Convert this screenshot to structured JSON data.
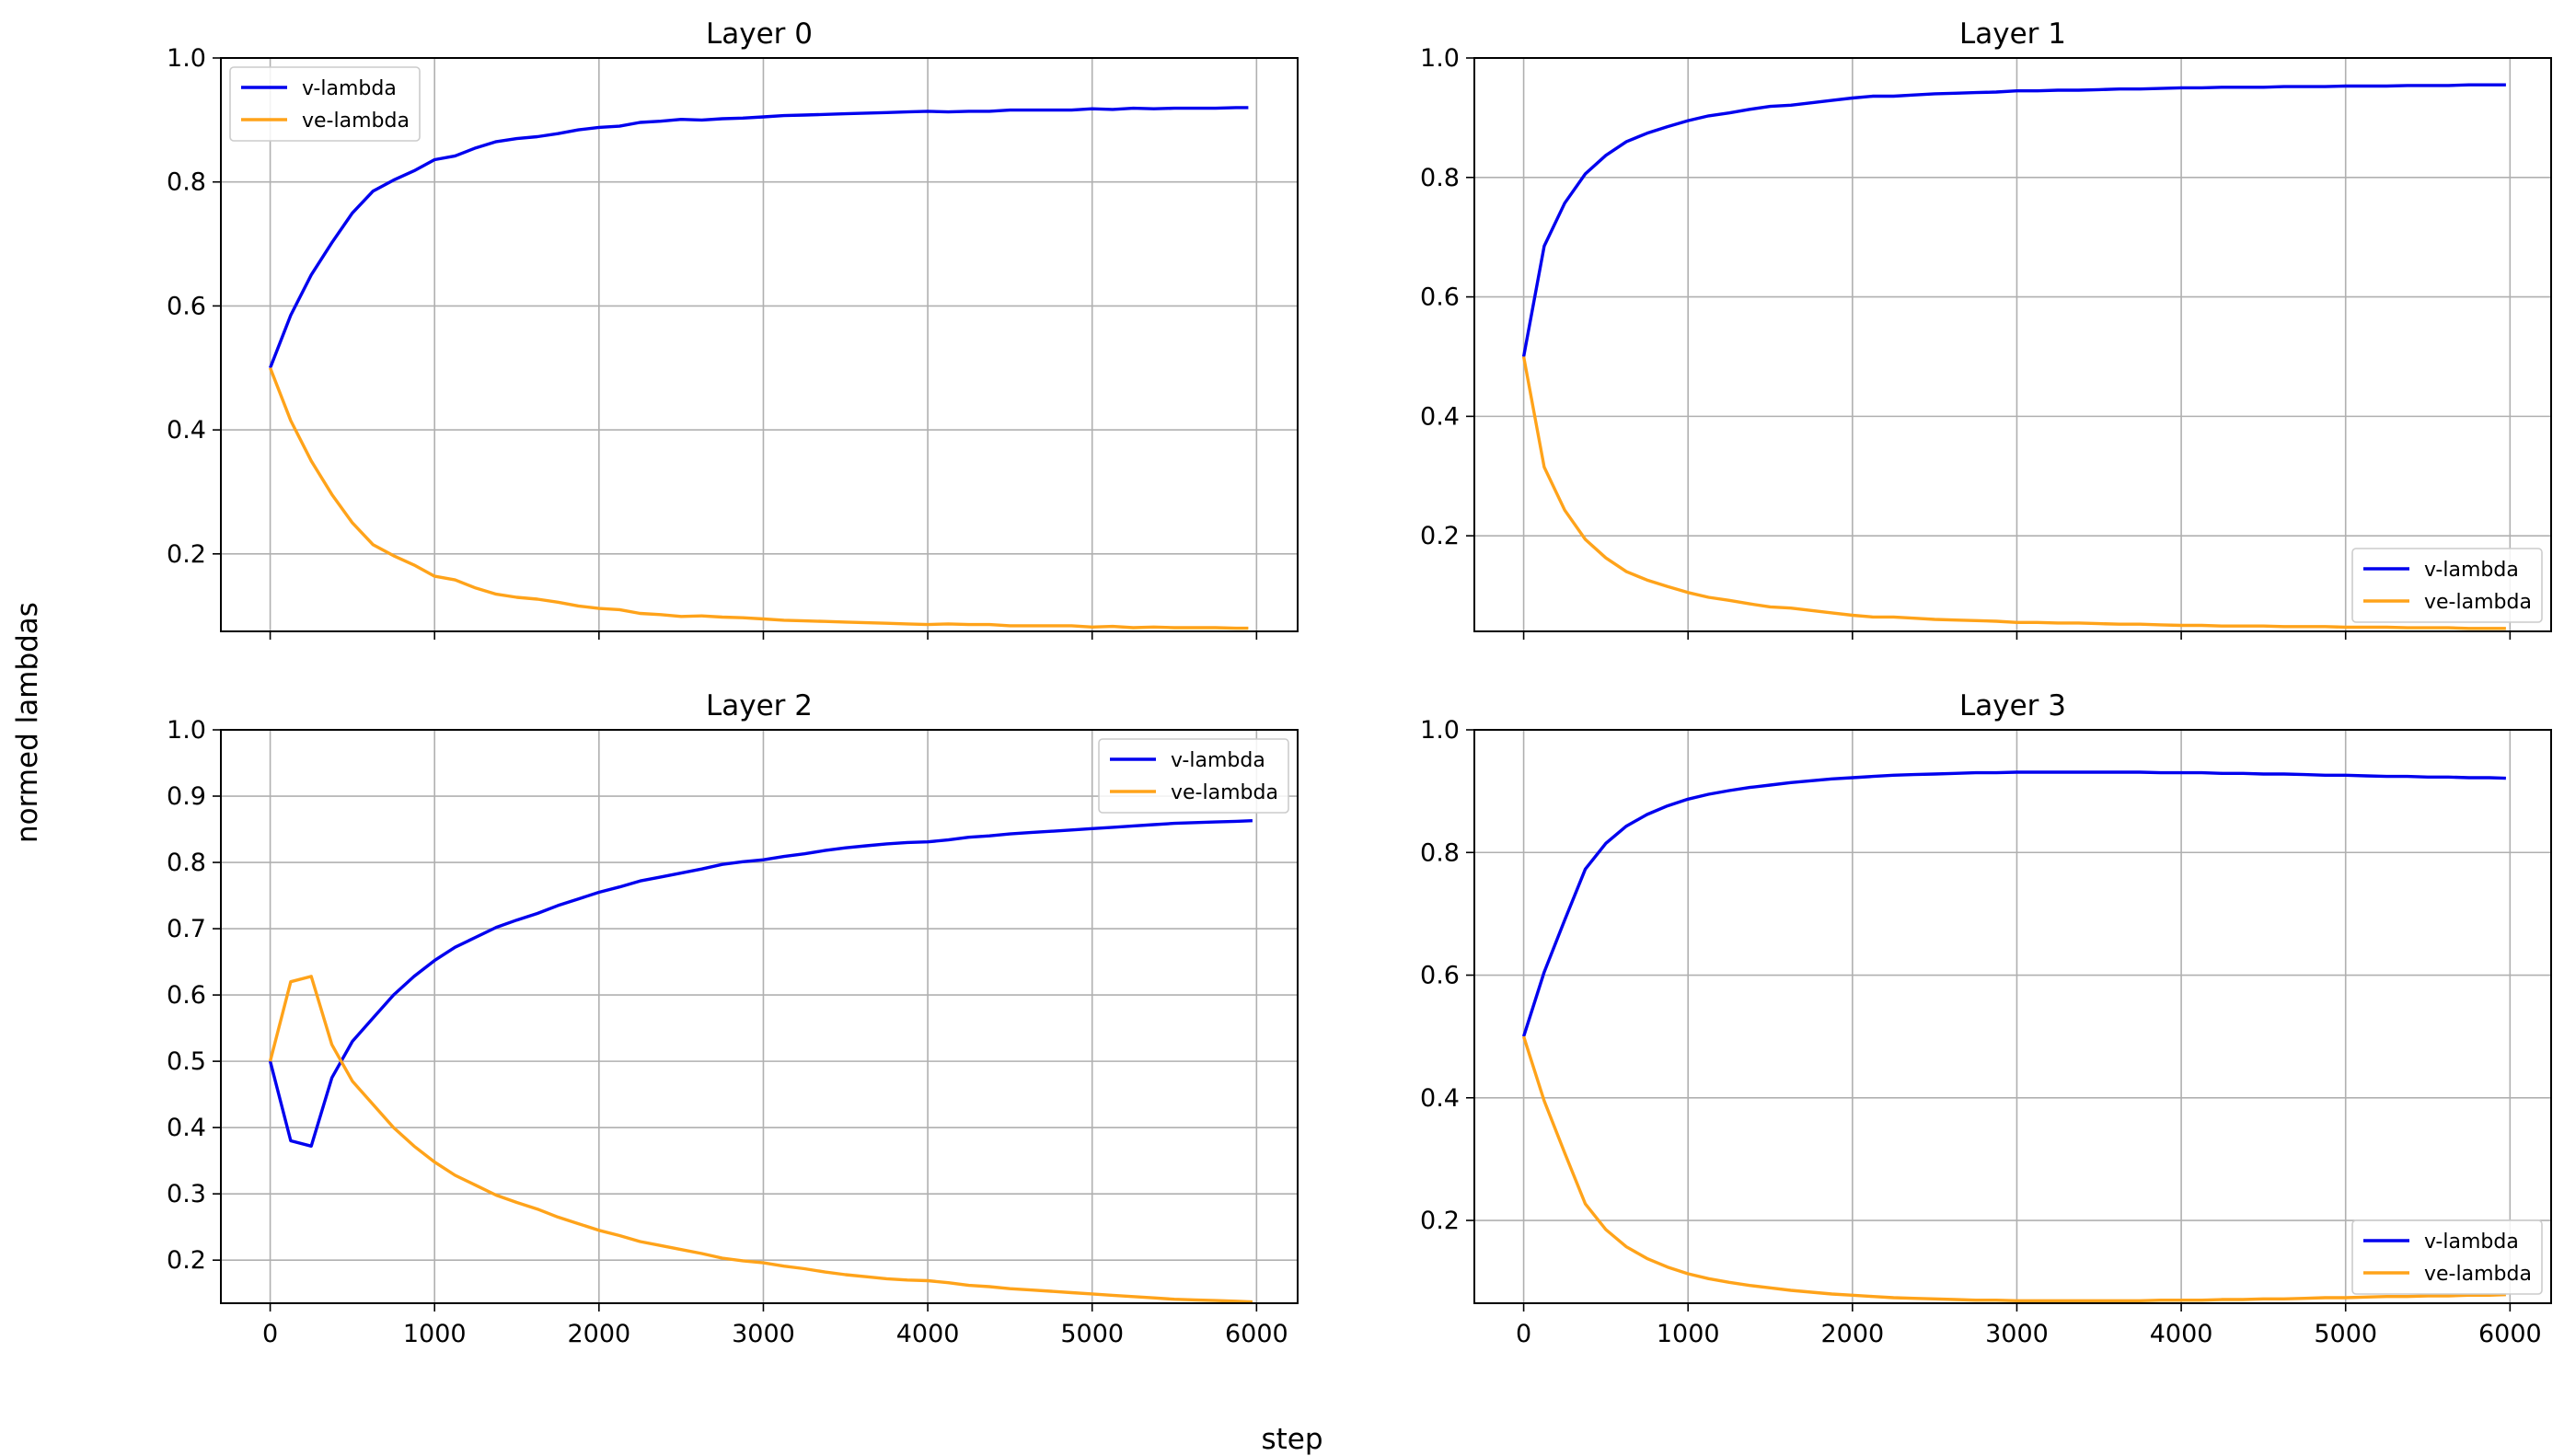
{
  "figure": {
    "xlabel": "step",
    "ylabel": "normed lambdas",
    "colors": {
      "v": "#0000ee",
      "ve": "#ffa31a",
      "grid": "#b0b0b0",
      "axis": "#000000"
    }
  },
  "chart_data": [
    {
      "type": "line",
      "title": "Layer 0",
      "xlim": [
        -300,
        6250
      ],
      "ylim": [
        0.075,
        1.0
      ],
      "xticks": [
        0,
        1000,
        2000,
        3000,
        4000,
        5000,
        6000
      ],
      "yticks": [
        0.2,
        0.4,
        0.6,
        0.8,
        1.0
      ],
      "show_xticklabels": false,
      "grid": true,
      "legend": "upper left",
      "x": [
        0,
        125,
        250,
        375,
        500,
        625,
        750,
        875,
        1000,
        1125,
        1250,
        1375,
        1500,
        1625,
        1750,
        1875,
        2000,
        2125,
        2250,
        2375,
        2500,
        2625,
        2750,
        2875,
        3000,
        3125,
        3250,
        3375,
        3500,
        3625,
        3750,
        3875,
        4000,
        4125,
        4250,
        4375,
        4500,
        4625,
        4750,
        4875,
        5000,
        5125,
        5250,
        5375,
        5500,
        5625,
        5750,
        5875,
        5950
      ],
      "series": [
        {
          "name": "v-lambda",
          "color": "#0000ee",
          "values": [
            0.5,
            0.585,
            0.65,
            0.702,
            0.75,
            0.785,
            0.803,
            0.818,
            0.836,
            0.842,
            0.855,
            0.865,
            0.87,
            0.873,
            0.878,
            0.884,
            0.888,
            0.89,
            0.896,
            0.898,
            0.901,
            0.9,
            0.902,
            0.903,
            0.905,
            0.907,
            0.908,
            0.909,
            0.91,
            0.911,
            0.912,
            0.913,
            0.914,
            0.913,
            0.914,
            0.914,
            0.916,
            0.916,
            0.916,
            0.916,
            0.918,
            0.917,
            0.919,
            0.918,
            0.919,
            0.919,
            0.919,
            0.92,
            0.92
          ]
        },
        {
          "name": "ve-lambda",
          "color": "#ffa31a",
          "values": [
            0.5,
            0.415,
            0.35,
            0.296,
            0.25,
            0.215,
            0.197,
            0.182,
            0.164,
            0.158,
            0.145,
            0.135,
            0.13,
            0.127,
            0.122,
            0.116,
            0.112,
            0.11,
            0.104,
            0.102,
            0.099,
            0.1,
            0.098,
            0.097,
            0.095,
            0.093,
            0.092,
            0.091,
            0.09,
            0.089,
            0.088,
            0.087,
            0.086,
            0.087,
            0.086,
            0.086,
            0.084,
            0.084,
            0.084,
            0.084,
            0.082,
            0.083,
            0.081,
            0.082,
            0.081,
            0.081,
            0.081,
            0.08,
            0.08
          ]
        }
      ]
    },
    {
      "type": "line",
      "title": "Layer 1",
      "xlim": [
        -300,
        6250
      ],
      "ylim": [
        0.04,
        1.0
      ],
      "xticks": [
        0,
        1000,
        2000,
        3000,
        4000,
        5000,
        6000
      ],
      "yticks": [
        0.2,
        0.4,
        0.6,
        0.8,
        1.0
      ],
      "show_xticklabels": false,
      "grid": true,
      "legend": "lower right",
      "x": [
        0,
        125,
        250,
        375,
        500,
        625,
        750,
        875,
        1000,
        1125,
        1250,
        1375,
        1500,
        1625,
        1750,
        1875,
        2000,
        2125,
        2250,
        2375,
        2500,
        2625,
        2750,
        2875,
        3000,
        3125,
        3250,
        3375,
        3500,
        3625,
        3750,
        3875,
        4000,
        4125,
        4250,
        4375,
        4500,
        4625,
        4750,
        4875,
        5000,
        5125,
        5250,
        5375,
        5500,
        5625,
        5750,
        5875,
        5975
      ],
      "series": [
        {
          "name": "v-lambda",
          "color": "#0000ee",
          "values": [
            0.5,
            0.685,
            0.757,
            0.806,
            0.837,
            0.86,
            0.874,
            0.885,
            0.895,
            0.903,
            0.908,
            0.914,
            0.919,
            0.921,
            0.925,
            0.929,
            0.933,
            0.936,
            0.936,
            0.938,
            0.94,
            0.941,
            0.942,
            0.943,
            0.945,
            0.945,
            0.946,
            0.946,
            0.947,
            0.948,
            0.948,
            0.949,
            0.95,
            0.95,
            0.951,
            0.951,
            0.951,
            0.952,
            0.952,
            0.952,
            0.953,
            0.953,
            0.953,
            0.954,
            0.954,
            0.954,
            0.955,
            0.955,
            0.955
          ]
        },
        {
          "name": "ve-lambda",
          "color": "#ffa31a",
          "values": [
            0.5,
            0.315,
            0.243,
            0.194,
            0.163,
            0.14,
            0.126,
            0.115,
            0.105,
            0.097,
            0.092,
            0.086,
            0.081,
            0.079,
            0.075,
            0.071,
            0.067,
            0.064,
            0.064,
            0.062,
            0.06,
            0.059,
            0.058,
            0.057,
            0.055,
            0.055,
            0.054,
            0.054,
            0.053,
            0.052,
            0.052,
            0.051,
            0.05,
            0.05,
            0.049,
            0.049,
            0.049,
            0.048,
            0.048,
            0.048,
            0.047,
            0.047,
            0.047,
            0.046,
            0.046,
            0.046,
            0.045,
            0.045,
            0.045
          ]
        }
      ]
    },
    {
      "type": "line",
      "title": "Layer 2",
      "xlim": [
        -300,
        6250
      ],
      "ylim": [
        0.135,
        1.0
      ],
      "xticks": [
        0,
        1000,
        2000,
        3000,
        4000,
        5000,
        6000
      ],
      "yticks": [
        0.2,
        0.3,
        0.4,
        0.5,
        0.6,
        0.7,
        0.8,
        0.9,
        1.0
      ],
      "show_xticklabels": true,
      "grid": true,
      "legend": "upper right",
      "x": [
        0,
        125,
        250,
        375,
        500,
        625,
        750,
        875,
        1000,
        1125,
        1250,
        1375,
        1500,
        1625,
        1750,
        1875,
        2000,
        2125,
        2250,
        2375,
        2500,
        2625,
        2750,
        2875,
        3000,
        3125,
        3250,
        3375,
        3500,
        3625,
        3750,
        3875,
        4000,
        4125,
        4250,
        4375,
        4500,
        4625,
        4750,
        4875,
        5000,
        5125,
        5250,
        5375,
        5500,
        5625,
        5750,
        5875,
        5975
      ],
      "series": [
        {
          "name": "v-lambda",
          "color": "#0000ee",
          "values": [
            0.5,
            0.38,
            0.372,
            0.475,
            0.53,
            0.565,
            0.6,
            0.628,
            0.652,
            0.672,
            0.687,
            0.702,
            0.713,
            0.723,
            0.735,
            0.745,
            0.755,
            0.763,
            0.772,
            0.778,
            0.784,
            0.79,
            0.797,
            0.801,
            0.804,
            0.809,
            0.813,
            0.818,
            0.822,
            0.825,
            0.828,
            0.83,
            0.831,
            0.834,
            0.838,
            0.84,
            0.843,
            0.845,
            0.847,
            0.849,
            0.851,
            0.853,
            0.855,
            0.857,
            0.859,
            0.86,
            0.861,
            0.862,
            0.863
          ]
        },
        {
          "name": "ve-lambda",
          "color": "#ffa31a",
          "values": [
            0.5,
            0.62,
            0.628,
            0.525,
            0.47,
            0.435,
            0.4,
            0.372,
            0.348,
            0.328,
            0.313,
            0.298,
            0.287,
            0.277,
            0.265,
            0.255,
            0.245,
            0.237,
            0.228,
            0.222,
            0.216,
            0.21,
            0.203,
            0.199,
            0.196,
            0.191,
            0.187,
            0.182,
            0.178,
            0.175,
            0.172,
            0.17,
            0.169,
            0.166,
            0.162,
            0.16,
            0.157,
            0.155,
            0.153,
            0.151,
            0.149,
            0.147,
            0.145,
            0.143,
            0.141,
            0.14,
            0.139,
            0.138,
            0.137
          ]
        }
      ]
    },
    {
      "type": "line",
      "title": "Layer 3",
      "xlim": [
        -300,
        6250
      ],
      "ylim": [
        0.065,
        1.0
      ],
      "xticks": [
        0,
        1000,
        2000,
        3000,
        4000,
        5000,
        6000
      ],
      "yticks": [
        0.2,
        0.4,
        0.6,
        0.8,
        1.0
      ],
      "show_xticklabels": true,
      "grid": true,
      "legend": "lower right",
      "x": [
        0,
        125,
        250,
        375,
        500,
        625,
        750,
        875,
        1000,
        1125,
        1250,
        1375,
        1500,
        1625,
        1750,
        1875,
        2000,
        2125,
        2250,
        2375,
        2500,
        2625,
        2750,
        2875,
        3000,
        3125,
        3250,
        3375,
        3500,
        3625,
        3750,
        3875,
        4000,
        4125,
        4250,
        4375,
        4500,
        4625,
        4750,
        4875,
        5000,
        5125,
        5250,
        5375,
        5500,
        5625,
        5750,
        5875,
        5975
      ],
      "series": [
        {
          "name": "v-lambda",
          "color": "#0000ee",
          "values": [
            0.5,
            0.605,
            0.69,
            0.773,
            0.815,
            0.843,
            0.862,
            0.876,
            0.887,
            0.895,
            0.901,
            0.906,
            0.91,
            0.914,
            0.917,
            0.92,
            0.922,
            0.924,
            0.926,
            0.927,
            0.928,
            0.929,
            0.93,
            0.93,
            0.931,
            0.931,
            0.931,
            0.931,
            0.931,
            0.931,
            0.931,
            0.93,
            0.93,
            0.93,
            0.929,
            0.929,
            0.928,
            0.928,
            0.927,
            0.926,
            0.926,
            0.925,
            0.924,
            0.924,
            0.923,
            0.923,
            0.922,
            0.922,
            0.921
          ]
        },
        {
          "name": "ve-lambda",
          "color": "#ffa31a",
          "values": [
            0.5,
            0.395,
            0.31,
            0.227,
            0.185,
            0.157,
            0.138,
            0.124,
            0.113,
            0.105,
            0.099,
            0.094,
            0.09,
            0.086,
            0.083,
            0.08,
            0.078,
            0.076,
            0.074,
            0.073,
            0.072,
            0.071,
            0.07,
            0.07,
            0.069,
            0.069,
            0.069,
            0.069,
            0.069,
            0.069,
            0.069,
            0.07,
            0.07,
            0.07,
            0.071,
            0.071,
            0.072,
            0.072,
            0.073,
            0.074,
            0.074,
            0.075,
            0.076,
            0.076,
            0.077,
            0.077,
            0.078,
            0.078,
            0.079
          ]
        }
      ]
    }
  ]
}
